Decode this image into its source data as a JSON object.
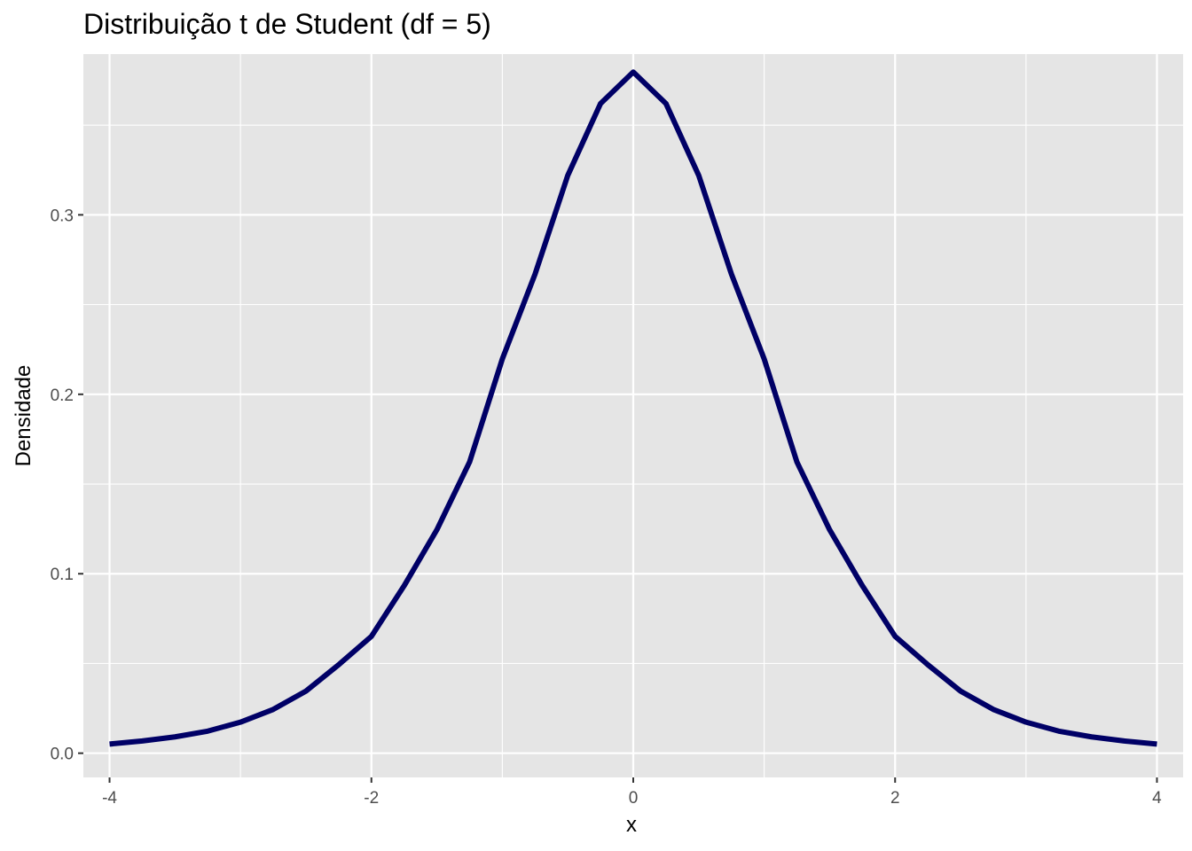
{
  "chart_data": {
    "type": "line",
    "title": "Distribuição t de Student (df = 5)",
    "xlabel": "x",
    "ylabel": "Densidade",
    "xlim": [
      -4.2,
      4.2
    ],
    "ylim": [
      -0.0135,
      0.3896
    ],
    "grid": true,
    "x_ticks": [
      -4,
      -2,
      0,
      2,
      4
    ],
    "x_tick_labels": [
      "-4",
      "-2",
      "0",
      "2",
      "4"
    ],
    "y_ticks": [
      0.0,
      0.1,
      0.2,
      0.3
    ],
    "y_tick_labels": [
      "0.0",
      "0.1",
      "0.2",
      "0.3"
    ],
    "series": [
      {
        "color": "#000066",
        "x": [
          -4.0,
          -3.75,
          -3.5,
          -3.25,
          -3.0,
          -2.75,
          -2.5,
          -2.25,
          -2.0,
          -1.75,
          -1.5,
          -1.25,
          -1.0,
          -0.75,
          -0.5,
          -0.25,
          0.0,
          0.25,
          0.5,
          0.75,
          1.0,
          1.25,
          1.5,
          1.75,
          2.0,
          2.25,
          2.5,
          2.75,
          3.0,
          3.25,
          3.5,
          3.75,
          4.0
        ],
        "y": [
          0.0051,
          0.0068,
          0.0091,
          0.0123,
          0.0173,
          0.0244,
          0.0346,
          0.0493,
          0.0651,
          0.0933,
          0.1245,
          0.1623,
          0.2197,
          0.267,
          0.322,
          0.362,
          0.3796,
          0.362,
          0.322,
          0.267,
          0.2197,
          0.1623,
          0.1245,
          0.0933,
          0.0651,
          0.0493,
          0.0346,
          0.0244,
          0.0173,
          0.0123,
          0.0091,
          0.0068,
          0.0051
        ]
      }
    ]
  },
  "style": {
    "panel_bg": "#e5e5e5",
    "grid_color": "#ffffff",
    "line_color": "#000066"
  }
}
